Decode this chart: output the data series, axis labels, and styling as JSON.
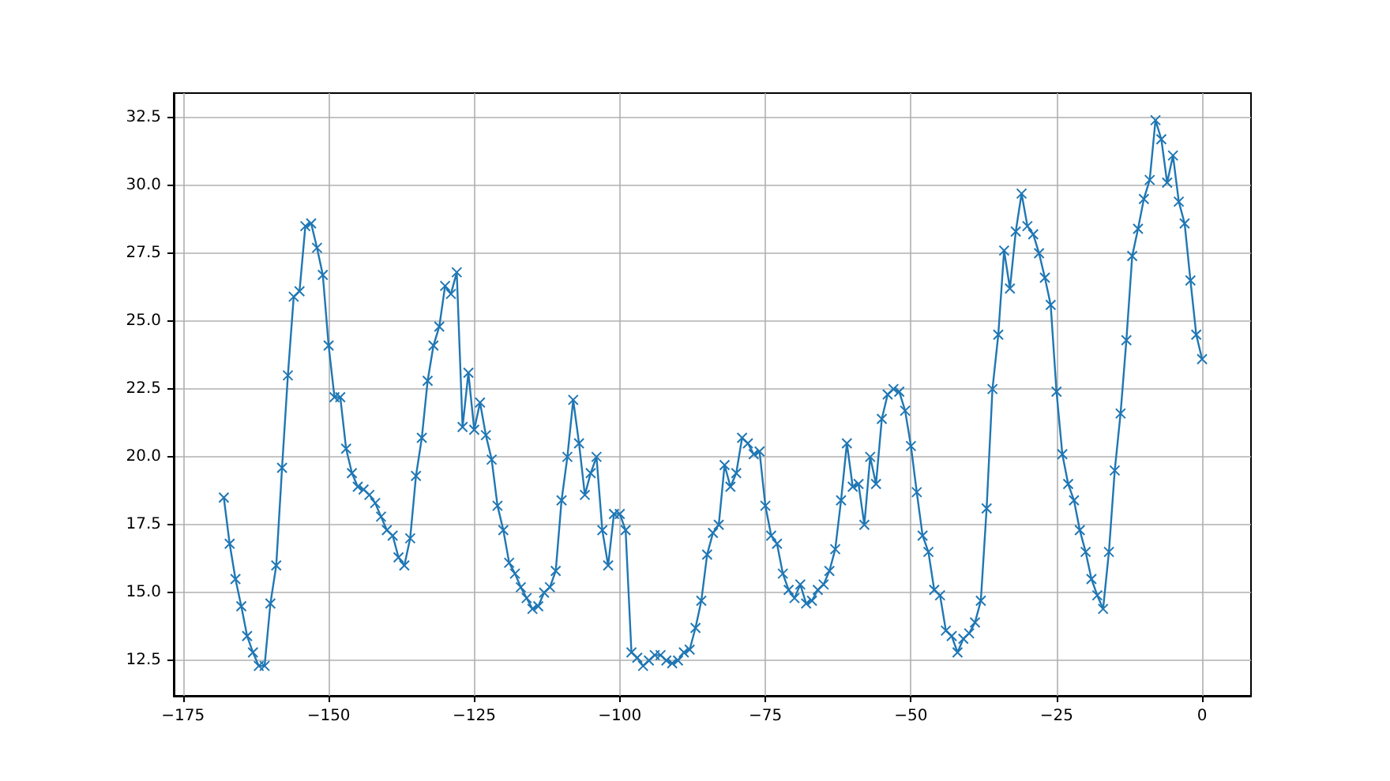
{
  "chart_data": {
    "type": "line",
    "marker": "cross",
    "grid": true,
    "x": [
      -168,
      -167,
      -166,
      -165,
      -164,
      -163,
      -162,
      -161,
      -160,
      -159,
      -158,
      -157,
      -156,
      -155,
      -154,
      -153,
      -152,
      -151,
      -150,
      -149,
      -148,
      -147,
      -146,
      -145,
      -144,
      -143,
      -142,
      -141,
      -140,
      -139,
      -138,
      -137,
      -136,
      -135,
      -134,
      -133,
      -132,
      -131,
      -130,
      -129,
      -128,
      -127,
      -126,
      -125,
      -124,
      -123,
      -122,
      -121,
      -120,
      -119,
      -118,
      -117,
      -116,
      -115,
      -114,
      -113,
      -112,
      -111,
      -110,
      -109,
      -108,
      -107,
      -106,
      -105,
      -104,
      -103,
      -102,
      -101,
      -100,
      -99,
      -98,
      -97,
      -96,
      -95,
      -94,
      -93,
      -92,
      -91,
      -90,
      -89,
      -88,
      -87,
      -86,
      -85,
      -84,
      -83,
      -82,
      -81,
      -80,
      -79,
      -78,
      -77,
      -76,
      -75,
      -74,
      -73,
      -72,
      -71,
      -70,
      -69,
      -68,
      -67,
      -66,
      -65,
      -64,
      -63,
      -62,
      -61,
      -60,
      -59,
      -58,
      -57,
      -56,
      -55,
      -54,
      -53,
      -52,
      -51,
      -50,
      -49,
      -48,
      -47,
      -46,
      -45,
      -44,
      -43,
      -42,
      -41,
      -40,
      -39,
      -38,
      -37,
      -36,
      -35,
      -34,
      -33,
      -32,
      -31,
      -30,
      -29,
      -28,
      -27,
      -26,
      -25,
      -24,
      -23,
      -22,
      -21,
      -20,
      -19,
      -18,
      -17,
      -16,
      -15,
      -14,
      -13,
      -12,
      -11,
      -10,
      -9,
      -8,
      -7,
      -6,
      -5,
      -4,
      -3,
      -2,
      -1,
      0
    ],
    "series": [
      {
        "color": "#1f77b4",
        "values": [
          18.5,
          16.8,
          15.5,
          14.5,
          13.4,
          12.8,
          12.3,
          12.3,
          14.6,
          16.0,
          19.6,
          23.0,
          25.9,
          26.1,
          28.5,
          28.6,
          27.7,
          26.7,
          24.1,
          22.2,
          22.2,
          20.3,
          19.4,
          18.9,
          18.8,
          18.6,
          18.3,
          17.8,
          17.3,
          17.1,
          16.3,
          16.0,
          17.0,
          19.3,
          20.7,
          22.8,
          24.1,
          24.8,
          26.3,
          26.0,
          26.8,
          21.1,
          23.1,
          21.0,
          22.0,
          20.8,
          19.9,
          18.2,
          17.3,
          16.1,
          15.7,
          15.2,
          14.8,
          14.4,
          14.5,
          15.0,
          15.2,
          15.8,
          18.4,
          20.0,
          22.1,
          20.5,
          18.6,
          19.4,
          20.0,
          17.3,
          16.0,
          17.9,
          17.9,
          17.3,
          12.8,
          12.6,
          12.3,
          12.5,
          12.7,
          12.7,
          12.5,
          12.4,
          12.5,
          12.8,
          12.9,
          13.7,
          14.7,
          16.4,
          17.2,
          17.5,
          19.7,
          18.9,
          19.4,
          20.7,
          20.5,
          20.1,
          20.2,
          18.2,
          17.1,
          16.8,
          15.7,
          15.1,
          14.8,
          15.3,
          14.6,
          14.7,
          15.1,
          15.3,
          15.8,
          16.6,
          18.4,
          20.5,
          18.9,
          19.0,
          17.5,
          20.0,
          19.0,
          21.4,
          22.3,
          22.5,
          22.4,
          21.7,
          20.4,
          18.7,
          17.1,
          16.5,
          15.1,
          14.9,
          13.6,
          13.4,
          12.8,
          13.3,
          13.5,
          13.9,
          14.7,
          18.1,
          22.5,
          24.5,
          27.6,
          26.2,
          28.3,
          29.7,
          28.5,
          28.2,
          27.5,
          26.6,
          25.6,
          22.4,
          20.1,
          19.0,
          18.4,
          17.3,
          16.5,
          15.5,
          14.9,
          14.4,
          16.5,
          19.5,
          21.6,
          24.3,
          27.4,
          28.4,
          29.5,
          30.2,
          32.4,
          31.7,
          30.1,
          31.1,
          29.4,
          28.6,
          26.5,
          24.5,
          23.6
        ]
      }
    ],
    "xlim": [
      -176.6,
      8.4
    ],
    "xticks": [
      {
        "value": -175,
        "label": "−175"
      },
      {
        "value": -150,
        "label": "−150"
      },
      {
        "value": -125,
        "label": "−125"
      },
      {
        "value": -100,
        "label": "−100"
      },
      {
        "value": -75,
        "label": "−75"
      },
      {
        "value": -50,
        "label": "−50"
      },
      {
        "value": -25,
        "label": "−25"
      },
      0
    ],
    "ylim": [
      11.2,
      33.4
    ],
    "yticks": [
      12.5,
      {
        "value": 15,
        "label": "15.0"
      },
      17.5,
      {
        "value": 20,
        "label": "20.0"
      },
      22.5,
      {
        "value": 25,
        "label": "25.0"
      },
      27.5,
      {
        "value": 30,
        "label": "30.0"
      },
      32.5
    ]
  }
}
